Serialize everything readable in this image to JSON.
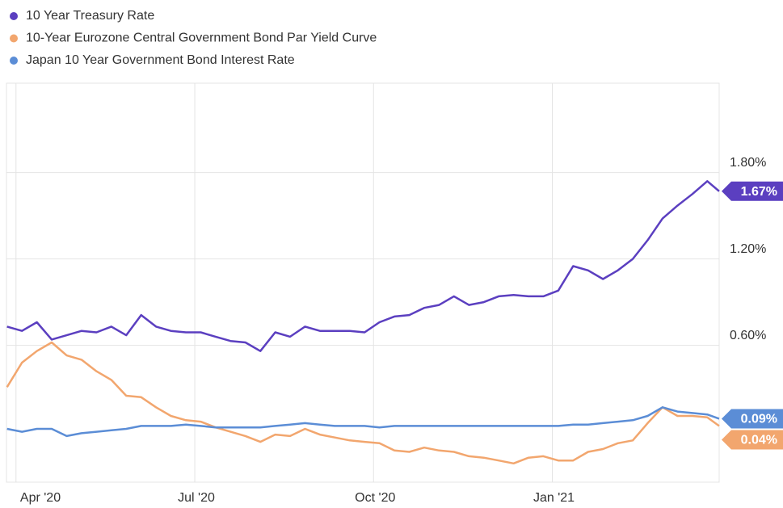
{
  "chart_data": {
    "type": "line",
    "x": [
      -0.15,
      0.1,
      0.35,
      0.6,
      0.85,
      1.1,
      1.35,
      1.6,
      1.85,
      2.1,
      2.35,
      2.6,
      2.85,
      3.1,
      3.35,
      3.6,
      3.85,
      4.1,
      4.35,
      4.6,
      4.85,
      5.1,
      5.35,
      5.6,
      5.85,
      6.1,
      6.35,
      6.6,
      6.85,
      7.1,
      7.35,
      7.6,
      7.85,
      8.1,
      8.35,
      8.6,
      8.85,
      9.1,
      9.35,
      9.6,
      9.85,
      10.1,
      10.35,
      10.6,
      10.85,
      11.1,
      11.35,
      11.6,
      11.8
    ],
    "series": [
      {
        "name": "10 Year Treasury Rate",
        "color": "#5b3fc0",
        "last_label": "1.67%",
        "values": [
          0.73,
          0.7,
          0.76,
          0.64,
          0.67,
          0.7,
          0.69,
          0.73,
          0.67,
          0.81,
          0.73,
          0.7,
          0.69,
          0.69,
          0.66,
          0.63,
          0.62,
          0.56,
          0.69,
          0.66,
          0.73,
          0.7,
          0.7,
          0.7,
          0.69,
          0.76,
          0.8,
          0.81,
          0.86,
          0.88,
          0.94,
          0.88,
          0.9,
          0.94,
          0.95,
          0.94,
          0.94,
          0.98,
          1.15,
          1.12,
          1.06,
          1.12,
          1.2,
          1.33,
          1.48,
          1.57,
          1.65,
          1.74,
          1.67
        ]
      },
      {
        "name": "10-Year Eurozone Central Government Bond Par Yield Curve",
        "color": "#f2a66e",
        "last_label": "0.04%",
        "values": [
          0.31,
          0.48,
          0.56,
          0.62,
          0.53,
          0.5,
          0.42,
          0.36,
          0.25,
          0.24,
          0.17,
          0.11,
          0.08,
          0.07,
          0.03,
          0.0,
          -0.03,
          -0.07,
          -0.02,
          -0.03,
          0.02,
          -0.02,
          -0.04,
          -0.06,
          -0.07,
          -0.08,
          -0.13,
          -0.14,
          -0.11,
          -0.13,
          -0.14,
          -0.17,
          -0.18,
          -0.2,
          -0.22,
          -0.18,
          -0.17,
          -0.2,
          -0.2,
          -0.14,
          -0.12,
          -0.08,
          -0.06,
          0.06,
          0.17,
          0.11,
          0.11,
          0.1,
          0.04
        ]
      },
      {
        "name": "Japan 10 Year Government Bond Interest Rate",
        "color": "#5b8dd6",
        "last_label": "0.09%",
        "values": [
          0.02,
          0.0,
          0.02,
          0.02,
          -0.03,
          -0.01,
          0.0,
          0.01,
          0.02,
          0.04,
          0.04,
          0.04,
          0.05,
          0.04,
          0.03,
          0.03,
          0.03,
          0.03,
          0.04,
          0.05,
          0.06,
          0.05,
          0.04,
          0.04,
          0.04,
          0.03,
          0.04,
          0.04,
          0.04,
          0.04,
          0.04,
          0.04,
          0.04,
          0.04,
          0.04,
          0.04,
          0.04,
          0.04,
          0.05,
          0.05,
          0.06,
          0.07,
          0.08,
          0.11,
          0.17,
          0.14,
          0.13,
          0.12,
          0.09
        ]
      }
    ],
    "xlim": [
      -0.16,
      11.8
    ],
    "xticks": [
      {
        "value": 0,
        "label": "Apr '20"
      },
      {
        "value": 3,
        "label": "Jul '20"
      },
      {
        "value": 6,
        "label": "Oct '20"
      },
      {
        "value": 9,
        "label": "Jan '21"
      }
    ],
    "ylim": [
      -0.35,
      2.42
    ],
    "yticks": [
      {
        "value": 0.6,
        "label": "0.60%"
      },
      {
        "value": 1.2,
        "label": "1.20%"
      },
      {
        "value": 1.8,
        "label": "1.80%"
      }
    ],
    "grid": true
  }
}
